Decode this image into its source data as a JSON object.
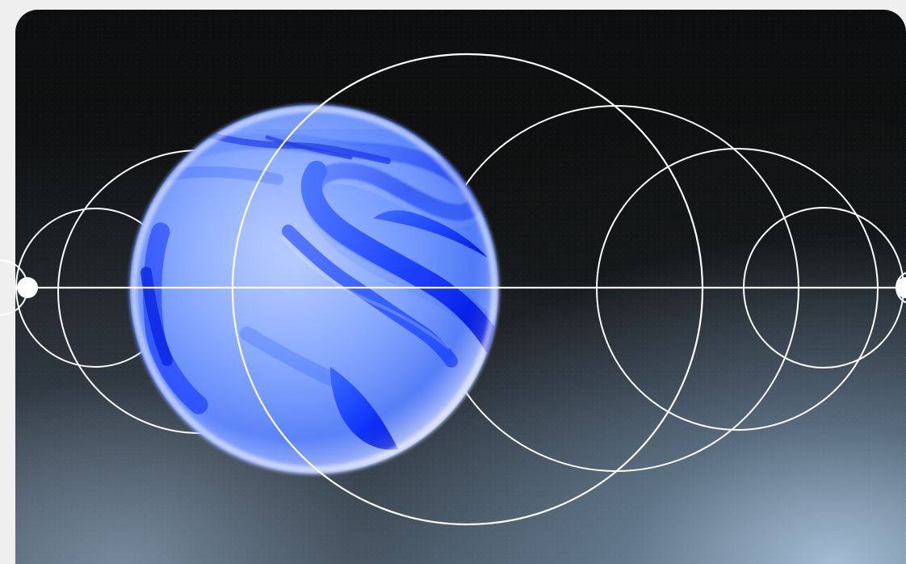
{
  "colors": {
    "page_background": "#efefef",
    "card_dark": "#111313",
    "orb_light": "#8fb0ff",
    "orb_blue": "#3f6df0",
    "orb_deep": "#0b24f2",
    "line": "#ffffff"
  }
}
